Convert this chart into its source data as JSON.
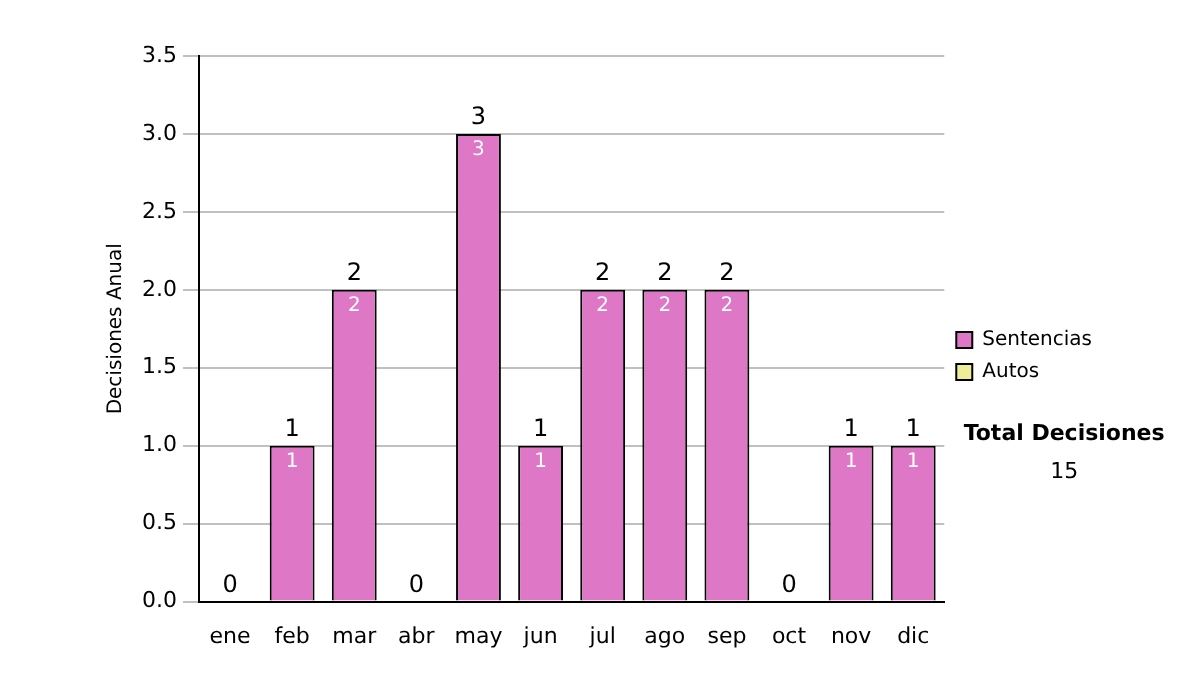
{
  "chart_data": {
    "type": "bar",
    "ylabel": "Decisiones Anual",
    "categories": [
      "ene",
      "feb",
      "mar",
      "abr",
      "may",
      "jun",
      "jul",
      "ago",
      "sep",
      "oct",
      "nov",
      "dic"
    ],
    "series": [
      {
        "name": "Sentencias",
        "color": "#dd77c6",
        "values": [
          0,
          1,
          2,
          0,
          3,
          1,
          2,
          2,
          2,
          0,
          1,
          1
        ],
        "value_labels": [
          null,
          "1",
          "2",
          null,
          "3",
          "1",
          "2",
          "2",
          "2",
          null,
          "1",
          "1"
        ]
      },
      {
        "name": "Autos",
        "color": "#eeee99",
        "values": [
          0,
          0,
          0,
          0,
          0,
          0,
          0,
          0,
          0,
          0,
          0,
          0
        ]
      }
    ],
    "stacked": true,
    "totals": [
      "0",
      "1",
      "2",
      "0",
      "3",
      "1",
      "2",
      "2",
      "2",
      "0",
      "1",
      "1"
    ],
    "ylim": [
      0,
      3.5
    ],
    "yticks": [
      {
        "value": 0,
        "label": "0.0"
      },
      {
        "value": 0.5,
        "label": "0.5"
      },
      {
        "value": 1,
        "label": "1.0"
      },
      {
        "value": 1.5,
        "label": "1.5"
      },
      {
        "value": 2,
        "label": "2.0"
      },
      {
        "value": 2.5,
        "label": "2.5"
      },
      {
        "value": 3,
        "label": "3.0"
      },
      {
        "value": 3.5,
        "label": "3.5"
      }
    ],
    "grid": "y",
    "legend": "right",
    "annotations": [
      "Total Decisiones",
      "15"
    ]
  }
}
